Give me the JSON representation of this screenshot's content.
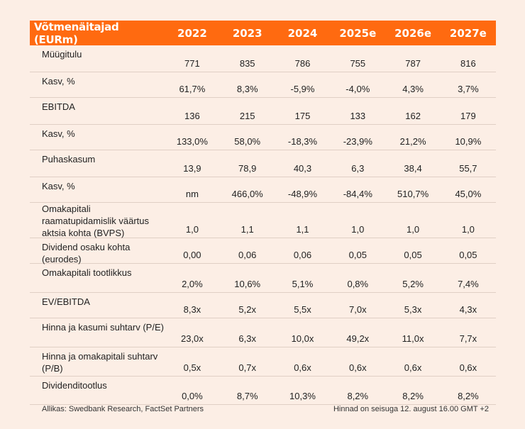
{
  "header": {
    "label": "Võtmenäitajad (EURm)",
    "years": [
      "2022",
      "2023",
      "2024",
      "2025e",
      "2026e",
      "2027e"
    ]
  },
  "rows": [
    {
      "label": "Müügitulu",
      "values": [
        "771",
        "835",
        "786",
        "755",
        "787",
        "816"
      ]
    },
    {
      "label": "Kasv, %",
      "values": [
        "61,7%",
        "8,3%",
        "-5,9%",
        "-4,0%",
        "4,3%",
        "3,7%"
      ]
    },
    {
      "label": "EBITDA",
      "values": [
        "136",
        "215",
        "175",
        "133",
        "162",
        "179"
      ]
    },
    {
      "label": "Kasv, %",
      "values": [
        "133,0%",
        "58,0%",
        "-18,3%",
        "-23,9%",
        "21,2%",
        "10,9%"
      ]
    },
    {
      "label": "Puhaskasum",
      "values": [
        "13,9",
        "78,9",
        "40,3",
        "6,3",
        "38,4",
        "55,7"
      ]
    },
    {
      "label": "Kasv, %",
      "values": [
        "nm",
        "466,0%",
        "-48,9%",
        "-84,4%",
        "510,7%",
        "45,0%"
      ]
    },
    {
      "label": "Omakapitali raamatupidamislik väärtus aktsia kohta (BVPS)",
      "values": [
        "1,0",
        "1,1",
        "1,1",
        "1,0",
        "1,0",
        "1,0"
      ]
    },
    {
      "label": "Dividend osaku kohta (eurodes)",
      "values": [
        "0,00",
        "0,06",
        "0,06",
        "0,05",
        "0,05",
        "0,05"
      ]
    },
    {
      "label": "Omakapitali tootlikkus",
      "values": [
        "2,0%",
        "10,6%",
        "5,1%",
        "0,8%",
        "5,2%",
        "7,4%"
      ]
    },
    {
      "label": "EV/EBITDA",
      "values": [
        "8,3x",
        "5,2x",
        "5,5x",
        "7,0x",
        "5,3x",
        "4,3x"
      ]
    },
    {
      "label": "Hinna ja kasumi suhtarv (P/E)",
      "values": [
        "23,0x",
        "6,3x",
        "10,0x",
        "49,2x",
        "11,0x",
        "7,7x"
      ]
    },
    {
      "label": "Hinna ja omakapitali suhtarv (P/B)",
      "values": [
        "0,5x",
        "0,7x",
        "0,6x",
        "0,6x",
        "0,6x",
        "0,6x"
      ]
    },
    {
      "label": "Dividenditootlus",
      "values": [
        "0,0%",
        "8,7%",
        "10,3%",
        "8,2%",
        "8,2%",
        "8,2%"
      ]
    }
  ],
  "footer": {
    "source": "Allikas: Swedbank Research, FactSet Partners",
    "prices_note": "Hinnad on seisuga 12. august 16.00 GMT +2"
  }
}
